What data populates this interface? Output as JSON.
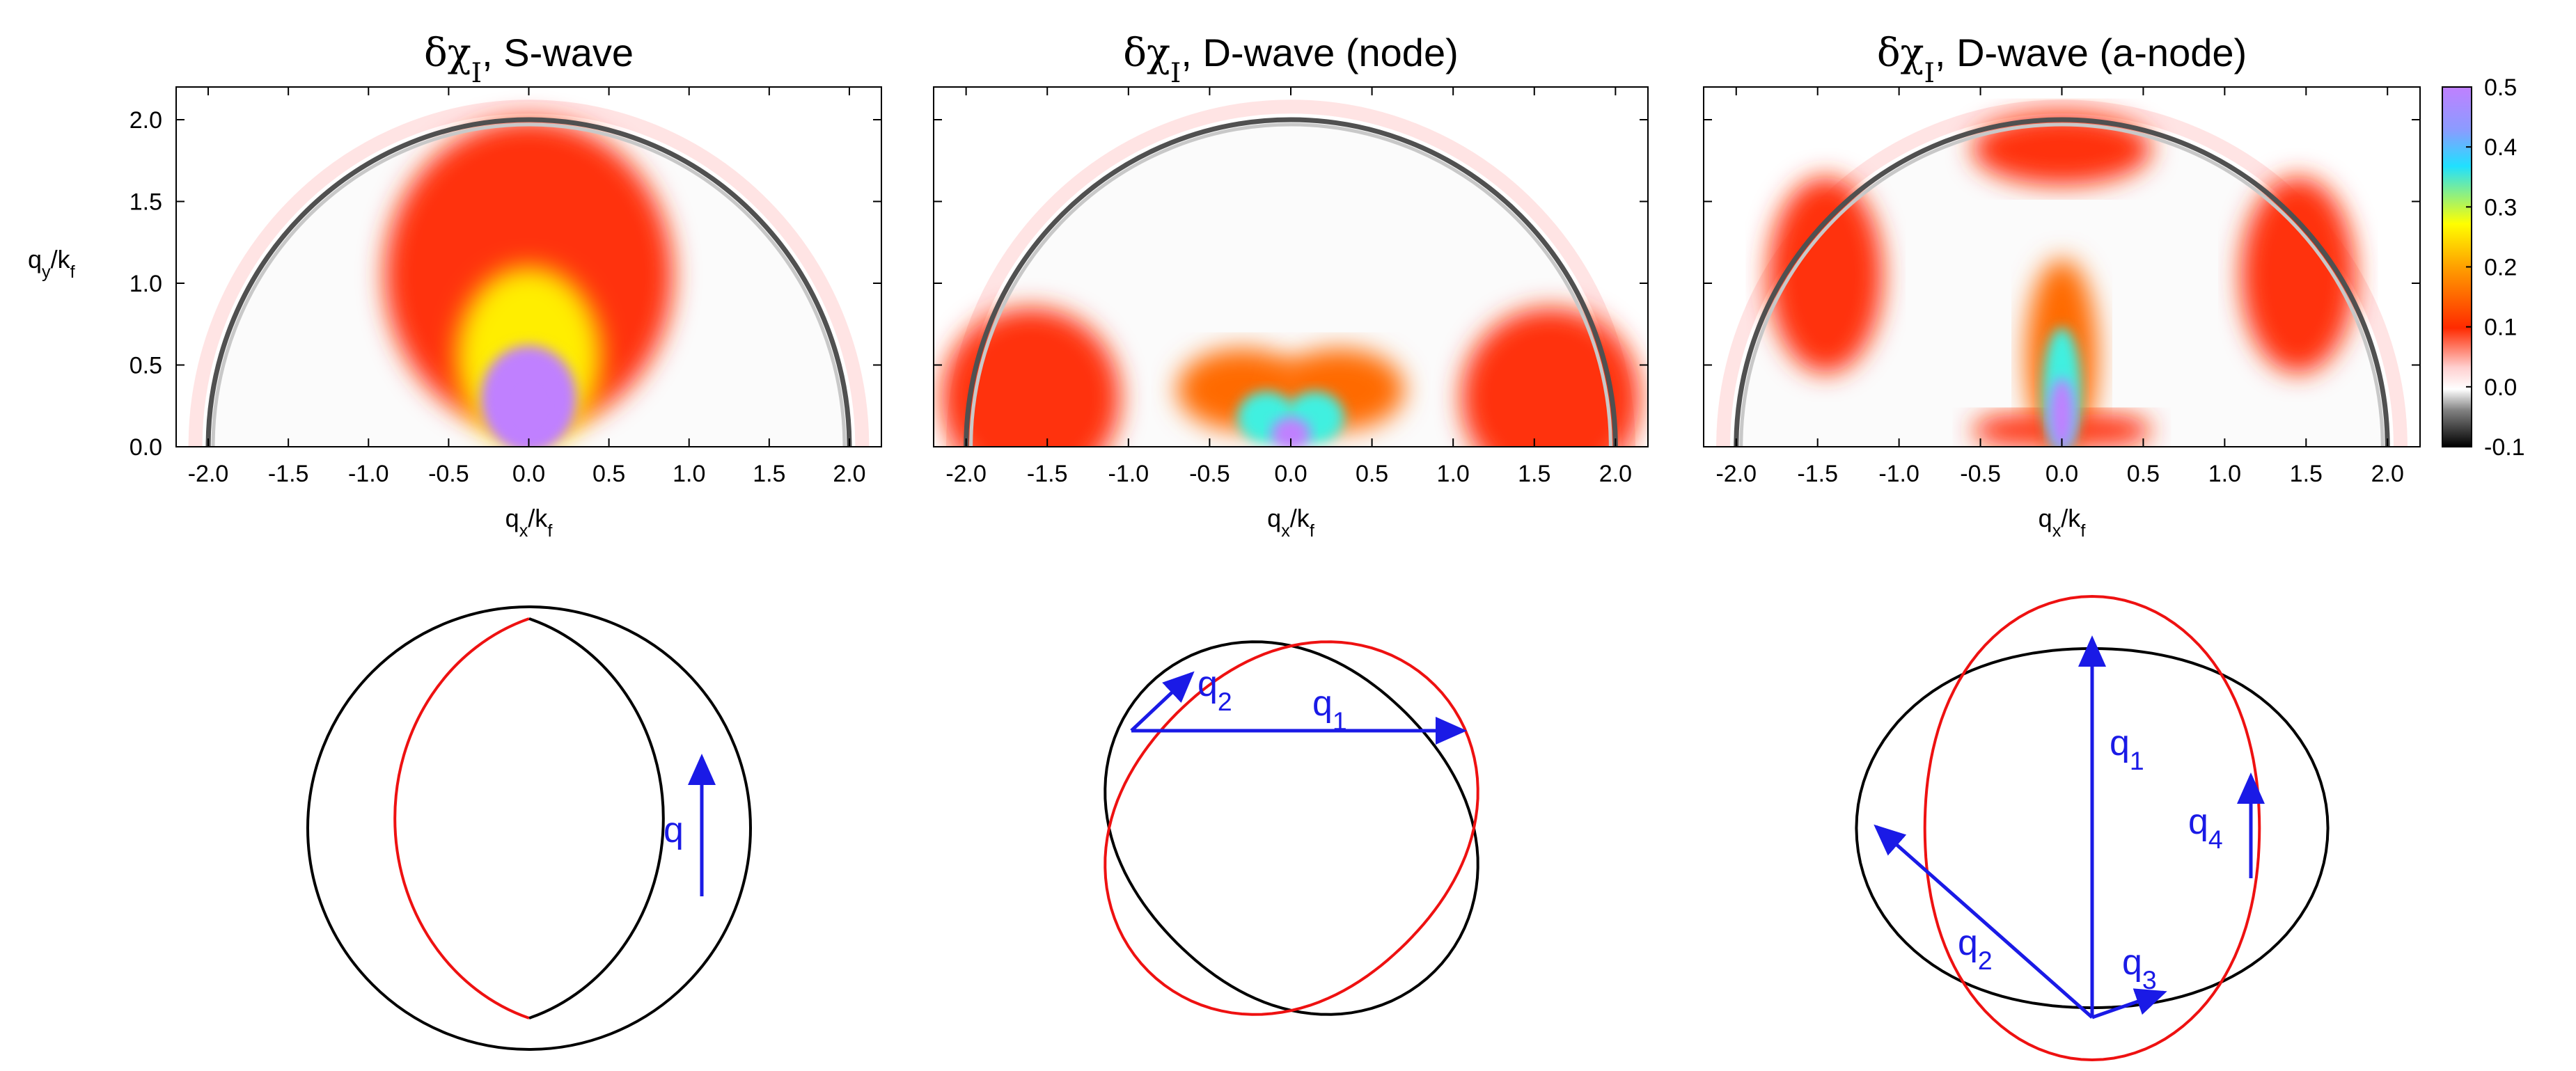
{
  "colors": {
    "fermi_black": "#000000",
    "fermi_red": "#ee1111",
    "arrow_blue": "#1a1ae6",
    "panel_border": "#000000"
  },
  "chart_data": [
    {
      "type": "heatmap",
      "title_prefix": "δχ",
      "title_sub": "I",
      "title_suffix": ", S-wave",
      "xlabel_main": "q",
      "xlabel_sub": "x",
      "xlabel_mid": "/k",
      "xlabel_sub2": "f",
      "ylabel_main": "q",
      "ylabel_sub": "y",
      "ylabel_mid": "/k",
      "ylabel_sub2": "f",
      "xlim": [
        -2.2,
        2.2
      ],
      "ylim": [
        0,
        2.2
      ],
      "xticks": [
        "-2.0",
        "-1.5",
        "-1.0",
        "-0.5",
        "0.0",
        "0.5",
        "1.0",
        "1.5",
        "2.0"
      ],
      "xtick_values": [
        -2.0,
        -1.5,
        -1.0,
        -0.5,
        0.0,
        0.5,
        1.0,
        1.5,
        2.0
      ],
      "yticks": [
        "0.0",
        "0.5",
        "1.0",
        "1.5",
        "2.0"
      ],
      "ytick_values": [
        0.0,
        0.5,
        1.0,
        1.5,
        2.0
      ],
      "features": [
        {
          "shape": "ellipse",
          "cx": 0.0,
          "cy": 1.05,
          "rx": 0.9,
          "ry": 0.95,
          "value": 0.12
        },
        {
          "shape": "ellipse",
          "cx": 0.0,
          "cy": 0.55,
          "rx": 0.45,
          "ry": 0.55,
          "value": 0.25
        },
        {
          "shape": "ellipse",
          "cx": 0.0,
          "cy": 0.3,
          "rx": 0.3,
          "ry": 0.32,
          "value": 0.45
        },
        {
          "shape": "ellipse",
          "cx": 0.0,
          "cy": 0.25,
          "rx": 0.22,
          "ry": 0.25,
          "value": 0.5
        }
      ]
    },
    {
      "type": "heatmap",
      "title_prefix": "δχ",
      "title_sub": "I",
      "title_suffix": ", D-wave (node)",
      "xlabel_main": "q",
      "xlabel_sub": "x",
      "xlabel_mid": "/k",
      "xlabel_sub2": "f",
      "xlim": [
        -2.2,
        2.2
      ],
      "ylim": [
        0,
        2.2
      ],
      "xticks": [
        "-2.0",
        "-1.5",
        "-1.0",
        "-0.5",
        "0.0",
        "0.5",
        "1.0",
        "1.5",
        "2.0"
      ],
      "xtick_values": [
        -2.0,
        -1.5,
        -1.0,
        -0.5,
        0.0,
        0.5,
        1.0,
        1.5,
        2.0
      ],
      "features": [
        {
          "shape": "ellipse",
          "cx": -1.6,
          "cy": 0.3,
          "rx": 0.55,
          "ry": 0.55,
          "value": 0.12
        },
        {
          "shape": "ellipse",
          "cx": 1.6,
          "cy": 0.3,
          "rx": 0.55,
          "ry": 0.55,
          "value": 0.12
        },
        {
          "shape": "ellipse",
          "cx": -0.3,
          "cy": 0.35,
          "rx": 0.4,
          "ry": 0.25,
          "value": 0.15
        },
        {
          "shape": "ellipse",
          "cx": 0.3,
          "cy": 0.35,
          "rx": 0.4,
          "ry": 0.25,
          "value": 0.15
        },
        {
          "shape": "ellipse",
          "cx": -0.15,
          "cy": 0.18,
          "rx": 0.18,
          "ry": 0.16,
          "value": 0.35
        },
        {
          "shape": "ellipse",
          "cx": 0.15,
          "cy": 0.18,
          "rx": 0.18,
          "ry": 0.16,
          "value": 0.35
        },
        {
          "shape": "ellipse",
          "cx": 0.0,
          "cy": 0.08,
          "rx": 0.12,
          "ry": 0.1,
          "value": 0.5
        }
      ]
    },
    {
      "type": "heatmap",
      "title_prefix": "δχ",
      "title_sub": "I",
      "title_suffix": ", D-wave (a-node)",
      "xlabel_main": "q",
      "xlabel_sub": "x",
      "xlabel_mid": "/k",
      "xlabel_sub2": "f",
      "xlim": [
        -2.2,
        2.2
      ],
      "ylim": [
        0,
        2.2
      ],
      "xticks": [
        "-2.0",
        "-1.5",
        "-1.0",
        "-0.5",
        "0.0",
        "0.5",
        "1.0",
        "1.5",
        "2.0"
      ],
      "xtick_values": [
        -2.0,
        -1.5,
        -1.0,
        -0.5,
        0.0,
        0.5,
        1.0,
        1.5,
        2.0
      ],
      "features": [
        {
          "shape": "ellipse",
          "cx": 0.0,
          "cy": 1.82,
          "rx": 0.55,
          "ry": 0.22,
          "value": 0.12
        },
        {
          "shape": "ellipse",
          "cx": -1.45,
          "cy": 1.05,
          "rx": 0.35,
          "ry": 0.6,
          "value": 0.12
        },
        {
          "shape": "ellipse",
          "cx": 1.45,
          "cy": 1.05,
          "rx": 0.35,
          "ry": 0.6,
          "value": 0.12
        },
        {
          "shape": "ellipse",
          "cx": 0.0,
          "cy": 0.55,
          "rx": 0.22,
          "ry": 0.6,
          "value": 0.15
        },
        {
          "shape": "ellipse",
          "cx": -0.25,
          "cy": 0.1,
          "rx": 0.3,
          "ry": 0.1,
          "value": 0.12
        },
        {
          "shape": "ellipse",
          "cx": 0.25,
          "cy": 0.1,
          "rx": 0.3,
          "ry": 0.1,
          "value": 0.12
        },
        {
          "shape": "ellipse",
          "cx": 0.0,
          "cy": 0.35,
          "rx": 0.12,
          "ry": 0.38,
          "value": 0.3
        },
        {
          "shape": "ellipse",
          "cx": 0.0,
          "cy": 0.2,
          "rx": 0.08,
          "ry": 0.22,
          "value": 0.5
        }
      ]
    }
  ],
  "colorbar": {
    "ticks": [
      "0.5",
      "0.4",
      "0.3",
      "0.2",
      "0.1",
      "0.0",
      "-0.1"
    ],
    "tick_values": [
      0.5,
      0.4,
      0.3,
      0.2,
      0.1,
      0.0,
      -0.1
    ],
    "range": [
      -0.1,
      0.5
    ]
  },
  "diagrams": [
    {
      "name": "s-wave",
      "labels": [
        {
          "main": "q",
          "sub": ""
        }
      ]
    },
    {
      "name": "d-wave-node",
      "labels": [
        {
          "main": "q",
          "sub": "2"
        },
        {
          "main": "q",
          "sub": "1"
        }
      ]
    },
    {
      "name": "d-wave-a-node",
      "labels": [
        {
          "main": "q",
          "sub": "1"
        },
        {
          "main": "q",
          "sub": "4"
        },
        {
          "main": "q",
          "sub": "2"
        },
        {
          "main": "q",
          "sub": "3"
        }
      ]
    }
  ]
}
